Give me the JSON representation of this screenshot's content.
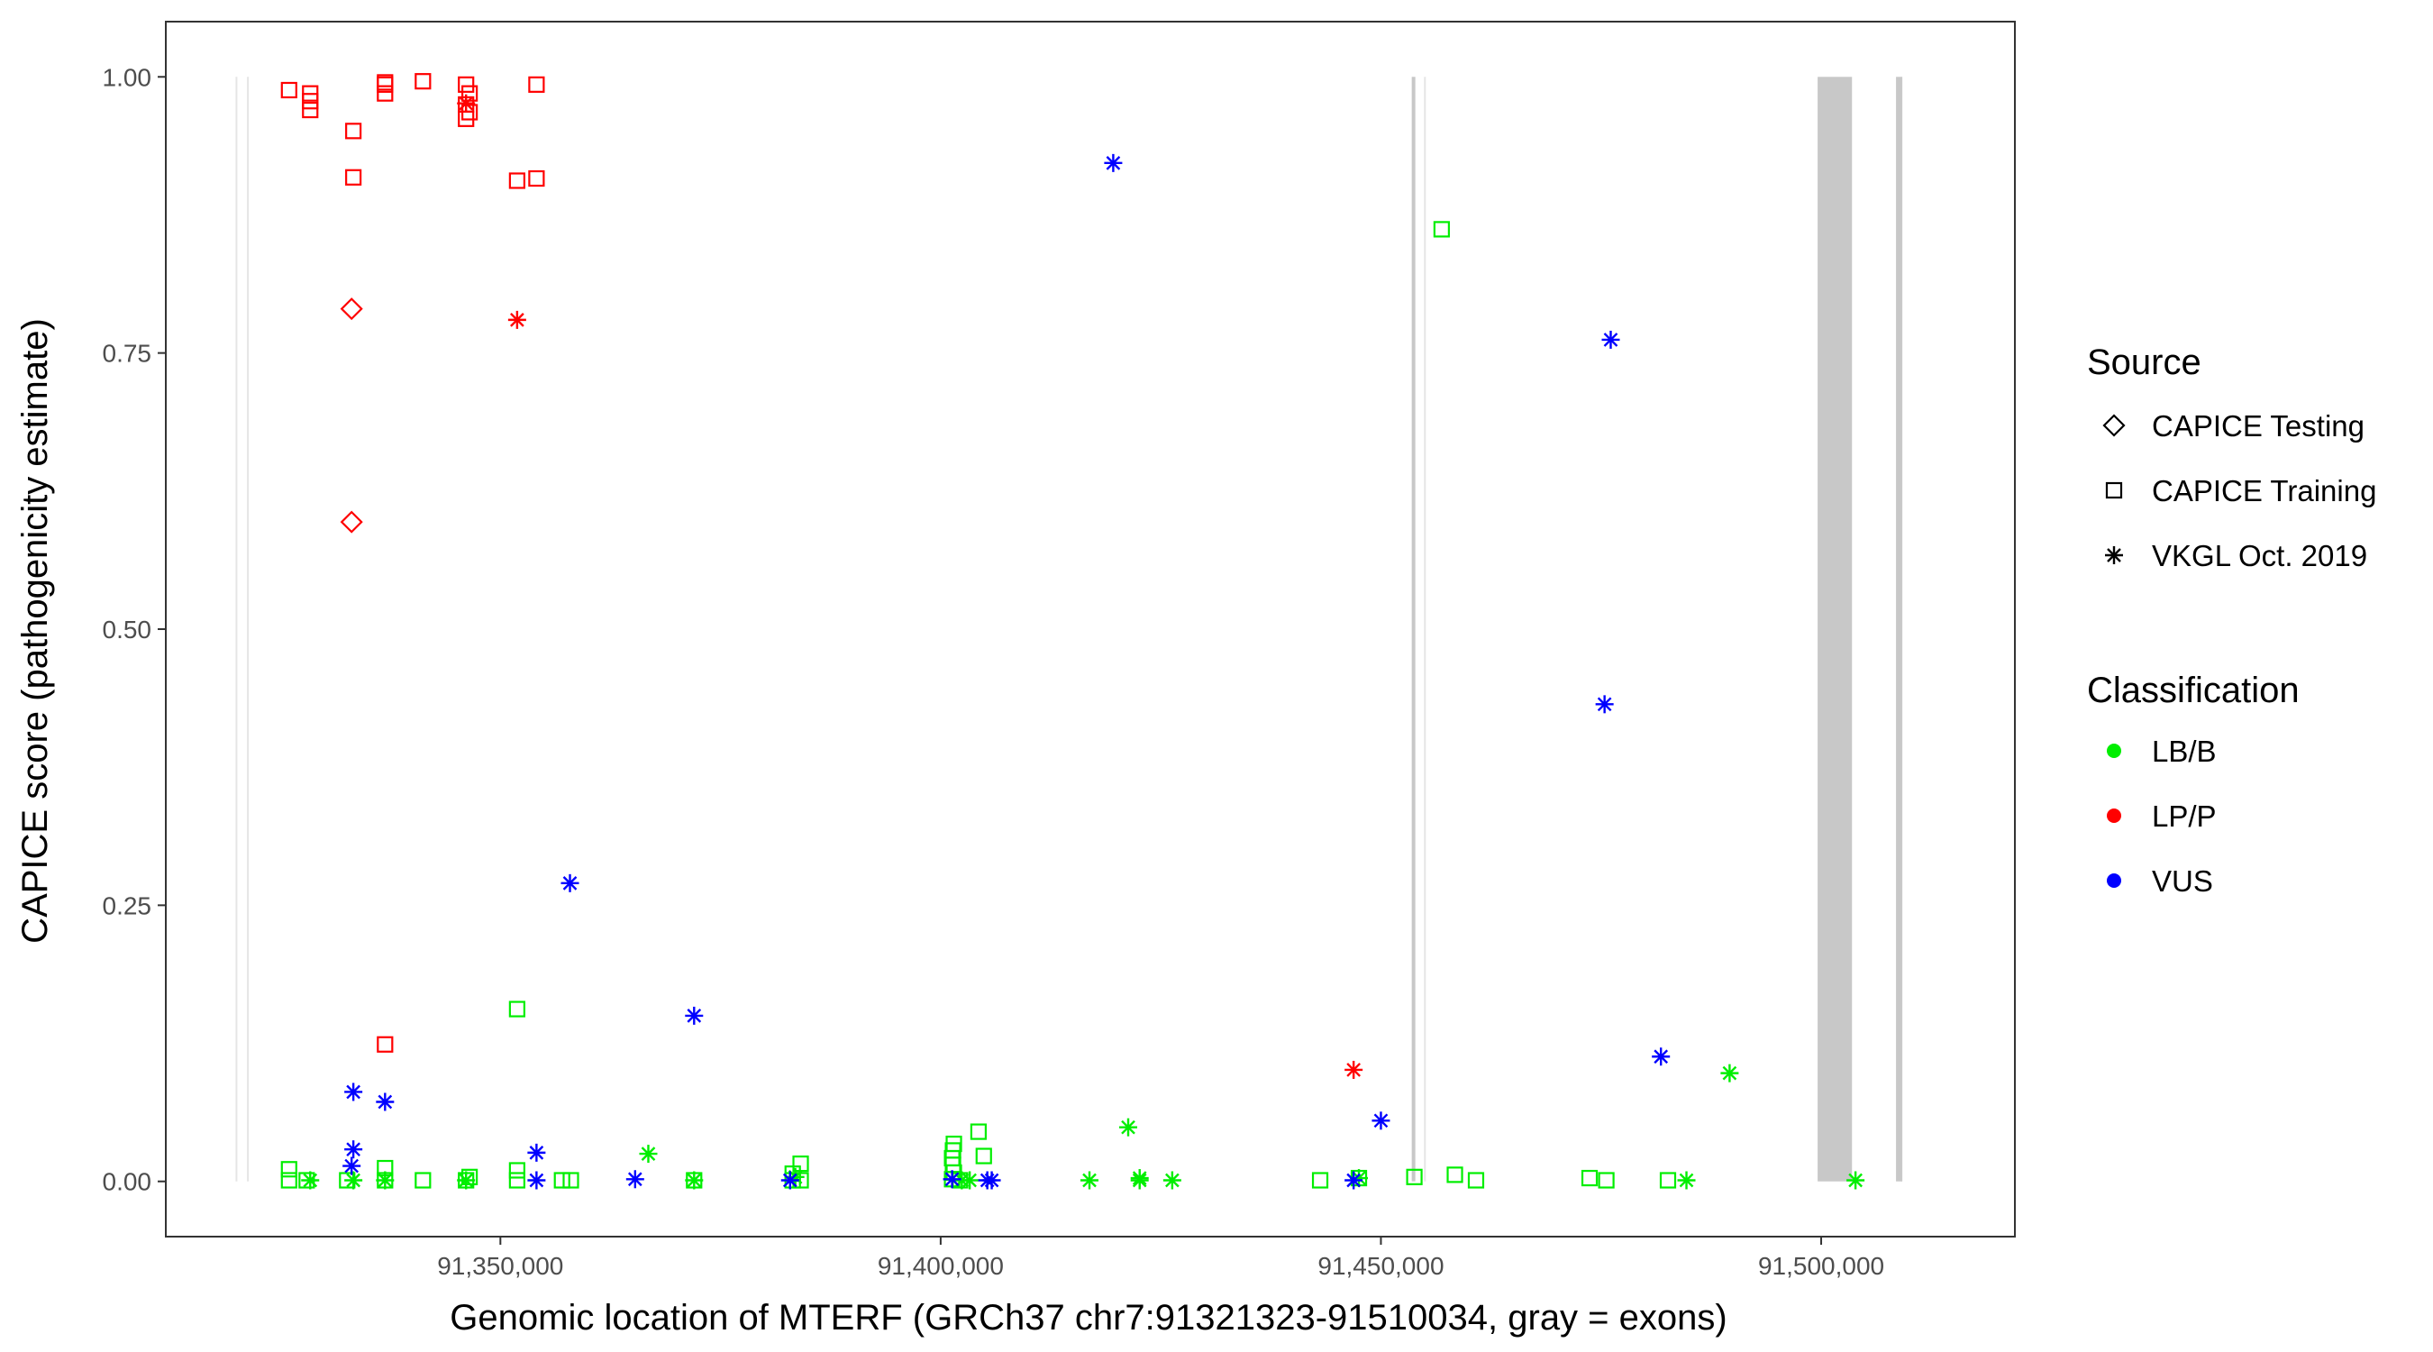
{
  "chart_data": {
    "type": "scatter",
    "xlabel": "Genomic location of MTERF (GRCh37 chr7:91321323-91510034, gray = exons)",
    "ylabel": "CAPICE score (pathogenicity estimate)",
    "xlim": [
      91312000,
      91522000
    ],
    "ylim": [
      -0.05,
      1.05
    ],
    "x_ticks": [
      91350000,
      91400000,
      91450000,
      91500000
    ],
    "x_tick_labels": [
      "91,350,000",
      "91,400,000",
      "91,450,000",
      "91,500,000"
    ],
    "y_ticks": [
      0,
      0.25,
      0.5,
      0.75,
      1.0
    ],
    "y_tick_labels": [
      "0.00",
      "0.25",
      "0.50",
      "0.75",
      "1.00"
    ],
    "grid": false,
    "gene_boundaries": [
      91321323,
      91510034
    ],
    "exons": [
      [
        91499600,
        91503500
      ],
      [
        91508500,
        91509200
      ],
      [
        91453500,
        91453700
      ]
    ],
    "legends": [
      {
        "title": "Source",
        "entries": [
          {
            "label": "CAPICE Testing",
            "shape": "diamond"
          },
          {
            "label": "CAPICE Training",
            "shape": "square"
          },
          {
            "label": "VKGL Oct. 2019",
            "shape": "asterisk"
          }
        ]
      },
      {
        "title": "Classification",
        "entries": [
          {
            "label": "LB/B",
            "color": "#00ee00"
          },
          {
            "label": "LP/P",
            "color": "#ff0000"
          },
          {
            "label": "VUS",
            "color": "#0000ff"
          }
        ]
      }
    ],
    "colors": {
      "LB/B": "#00ee00",
      "LP/P": "#ff0000",
      "VUS": "#0000ff",
      "exon": "#c8c8c8",
      "boundary": "#e5e5e5"
    },
    "points": [
      {
        "x": 91326000,
        "y": 0.988,
        "source": "CAPICE Training",
        "class": "LP/P"
      },
      {
        "x": 91328400,
        "y": 0.985,
        "source": "CAPICE Training",
        "class": "LP/P"
      },
      {
        "x": 91328400,
        "y": 0.978,
        "source": "CAPICE Training",
        "class": "LP/P"
      },
      {
        "x": 91328400,
        "y": 0.97,
        "source": "CAPICE Training",
        "class": "LP/P"
      },
      {
        "x": 91333300,
        "y": 0.951,
        "source": "CAPICE Training",
        "class": "LP/P"
      },
      {
        "x": 91333300,
        "y": 0.909,
        "source": "CAPICE Training",
        "class": "LP/P"
      },
      {
        "x": 91336900,
        "y": 0.995,
        "source": "CAPICE Training",
        "class": "LP/P"
      },
      {
        "x": 91336900,
        "y": 0.993,
        "source": "CAPICE Training",
        "class": "LP/P"
      },
      {
        "x": 91336900,
        "y": 0.985,
        "source": "CAPICE Training",
        "class": "LP/P"
      },
      {
        "x": 91341200,
        "y": 0.996,
        "source": "CAPICE Training",
        "class": "LP/P"
      },
      {
        "x": 91346100,
        "y": 0.993,
        "source": "CAPICE Training",
        "class": "LP/P"
      },
      {
        "x": 91346500,
        "y": 0.985,
        "source": "CAPICE Training",
        "class": "LP/P"
      },
      {
        "x": 91346100,
        "y": 0.975,
        "source": "CAPICE Training",
        "class": "LP/P"
      },
      {
        "x": 91346500,
        "y": 0.968,
        "source": "CAPICE Training",
        "class": "LP/P"
      },
      {
        "x": 91346100,
        "y": 0.962,
        "source": "CAPICE Training",
        "class": "LP/P"
      },
      {
        "x": 91346100,
        "y": 0.976,
        "source": "VKGL Oct. 2019",
        "class": "LP/P"
      },
      {
        "x": 91354100,
        "y": 0.993,
        "source": "CAPICE Training",
        "class": "LP/P"
      },
      {
        "x": 91351900,
        "y": 0.906,
        "source": "CAPICE Training",
        "class": "LP/P"
      },
      {
        "x": 91354100,
        "y": 0.908,
        "source": "CAPICE Training",
        "class": "LP/P"
      },
      {
        "x": 91333100,
        "y": 0.79,
        "source": "CAPICE Testing",
        "class": "LP/P"
      },
      {
        "x": 91351900,
        "y": 0.78,
        "source": "VKGL Oct. 2019",
        "class": "LP/P"
      },
      {
        "x": 91333100,
        "y": 0.597,
        "source": "CAPICE Testing",
        "class": "LP/P"
      },
      {
        "x": 91336900,
        "y": 0.124,
        "source": "CAPICE Training",
        "class": "LP/P"
      },
      {
        "x": 91446900,
        "y": 0.101,
        "source": "VKGL Oct. 2019",
        "class": "LP/P"
      },
      {
        "x": 91351900,
        "y": 0.156,
        "source": "CAPICE Training",
        "class": "LB/B"
      },
      {
        "x": 91456900,
        "y": 0.862,
        "source": "CAPICE Training",
        "class": "LB/B"
      },
      {
        "x": 91326000,
        "y": 0.011,
        "source": "CAPICE Training",
        "class": "LB/B"
      },
      {
        "x": 91326000,
        "y": 0.001,
        "source": "CAPICE Training",
        "class": "LB/B"
      },
      {
        "x": 91328000,
        "y": 0.001,
        "source": "CAPICE Training",
        "class": "LB/B"
      },
      {
        "x": 91328400,
        "y": 0.001,
        "source": "VKGL Oct. 2019",
        "class": "LB/B"
      },
      {
        "x": 91332600,
        "y": 0.001,
        "source": "CAPICE Training",
        "class": "LB/B"
      },
      {
        "x": 91333300,
        "y": 0.001,
        "source": "VKGL Oct. 2019",
        "class": "LB/B"
      },
      {
        "x": 91336900,
        "y": 0.012,
        "source": "CAPICE Training",
        "class": "LB/B"
      },
      {
        "x": 91336900,
        "y": 0.001,
        "source": "CAPICE Training",
        "class": "LB/B"
      },
      {
        "x": 91336900,
        "y": 0.001,
        "source": "VKGL Oct. 2019",
        "class": "LB/B"
      },
      {
        "x": 91341200,
        "y": 0.001,
        "source": "CAPICE Training",
        "class": "LB/B"
      },
      {
        "x": 91346100,
        "y": 0.001,
        "source": "CAPICE Training",
        "class": "LB/B"
      },
      {
        "x": 91346500,
        "y": 0.004,
        "source": "CAPICE Training",
        "class": "LB/B"
      },
      {
        "x": 91346100,
        "y": 0.001,
        "source": "VKGL Oct. 2019",
        "class": "LB/B"
      },
      {
        "x": 91351900,
        "y": 0.01,
        "source": "CAPICE Training",
        "class": "LB/B"
      },
      {
        "x": 91351900,
        "y": 0.001,
        "source": "CAPICE Training",
        "class": "LB/B"
      },
      {
        "x": 91357000,
        "y": 0.001,
        "source": "CAPICE Training",
        "class": "LB/B"
      },
      {
        "x": 91358000,
        "y": 0.001,
        "source": "CAPICE Training",
        "class": "LB/B"
      },
      {
        "x": 91366800,
        "y": 0.025,
        "source": "VKGL Oct. 2019",
        "class": "LB/B"
      },
      {
        "x": 91372000,
        "y": 0.001,
        "source": "CAPICE Training",
        "class": "LB/B"
      },
      {
        "x": 91372000,
        "y": 0.001,
        "source": "VKGL Oct. 2019",
        "class": "LB/B"
      },
      {
        "x": 91383200,
        "y": 0.007,
        "source": "CAPICE Training",
        "class": "LB/B"
      },
      {
        "x": 91383200,
        "y": 0.001,
        "source": "CAPICE Training",
        "class": "LB/B"
      },
      {
        "x": 91384100,
        "y": 0.016,
        "source": "CAPICE Training",
        "class": "LB/B"
      },
      {
        "x": 91384100,
        "y": 0.001,
        "source": "CAPICE Training",
        "class": "LB/B"
      },
      {
        "x": 91383500,
        "y": 0.004,
        "source": "VKGL Oct. 2019",
        "class": "LB/B"
      },
      {
        "x": 91401500,
        "y": 0.034,
        "source": "CAPICE Training",
        "class": "LB/B"
      },
      {
        "x": 91401400,
        "y": 0.028,
        "source": "CAPICE Training",
        "class": "LB/B"
      },
      {
        "x": 91401300,
        "y": 0.021,
        "source": "CAPICE Training",
        "class": "LB/B"
      },
      {
        "x": 91401400,
        "y": 0.015,
        "source": "CAPICE Training",
        "class": "LB/B"
      },
      {
        "x": 91401500,
        "y": 0.008,
        "source": "CAPICE Training",
        "class": "LB/B"
      },
      {
        "x": 91401300,
        "y": 0.002,
        "source": "CAPICE Training",
        "class": "LB/B"
      },
      {
        "x": 91404300,
        "y": 0.045,
        "source": "CAPICE Training",
        "class": "LB/B"
      },
      {
        "x": 91404900,
        "y": 0.023,
        "source": "CAPICE Training",
        "class": "LB/B"
      },
      {
        "x": 91402200,
        "y": 0.001,
        "source": "CAPICE Training",
        "class": "LB/B"
      },
      {
        "x": 91403300,
        "y": 0.001,
        "source": "VKGL Oct. 2019",
        "class": "LB/B"
      },
      {
        "x": 91402400,
        "y": 0.001,
        "source": "VKGL Oct. 2019",
        "class": "LB/B"
      },
      {
        "x": 91416900,
        "y": 0.001,
        "source": "VKGL Oct. 2019",
        "class": "LB/B"
      },
      {
        "x": 91421300,
        "y": 0.049,
        "source": "VKGL Oct. 2019",
        "class": "LB/B"
      },
      {
        "x": 91422600,
        "y": 0.003,
        "source": "VKGL Oct. 2019",
        "class": "LB/B"
      },
      {
        "x": 91422600,
        "y": 0.001,
        "source": "VKGL Oct. 2019",
        "class": "LB/B"
      },
      {
        "x": 91426300,
        "y": 0.001,
        "source": "VKGL Oct. 2019",
        "class": "LB/B"
      },
      {
        "x": 91443100,
        "y": 0.001,
        "source": "CAPICE Training",
        "class": "LB/B"
      },
      {
        "x": 91447500,
        "y": 0.003,
        "source": "CAPICE Training",
        "class": "LB/B"
      },
      {
        "x": 91447500,
        "y": 0.003,
        "source": "VKGL Oct. 2019",
        "class": "LB/B"
      },
      {
        "x": 91453800,
        "y": 0.004,
        "source": "CAPICE Training",
        "class": "LB/B"
      },
      {
        "x": 91458400,
        "y": 0.006,
        "source": "CAPICE Training",
        "class": "LB/B"
      },
      {
        "x": 91460800,
        "y": 0.001,
        "source": "CAPICE Training",
        "class": "LB/B"
      },
      {
        "x": 91473700,
        "y": 0.003,
        "source": "CAPICE Training",
        "class": "LB/B"
      },
      {
        "x": 91475600,
        "y": 0.001,
        "source": "CAPICE Training",
        "class": "LB/B"
      },
      {
        "x": 91482600,
        "y": 0.001,
        "source": "CAPICE Training",
        "class": "LB/B"
      },
      {
        "x": 91484700,
        "y": 0.001,
        "source": "VKGL Oct. 2019",
        "class": "LB/B"
      },
      {
        "x": 91489600,
        "y": 0.098,
        "source": "VKGL Oct. 2019",
        "class": "LB/B"
      },
      {
        "x": 91503900,
        "y": 0.001,
        "source": "VKGL Oct. 2019",
        "class": "LB/B"
      },
      {
        "x": 91419600,
        "y": 0.922,
        "source": "VKGL Oct. 2019",
        "class": "VUS"
      },
      {
        "x": 91476100,
        "y": 0.762,
        "source": "VKGL Oct. 2019",
        "class": "VUS"
      },
      {
        "x": 91475400,
        "y": 0.432,
        "source": "VKGL Oct. 2019",
        "class": "VUS"
      },
      {
        "x": 91357900,
        "y": 0.27,
        "source": "VKGL Oct. 2019",
        "class": "VUS"
      },
      {
        "x": 91372000,
        "y": 0.15,
        "source": "VKGL Oct. 2019",
        "class": "VUS"
      },
      {
        "x": 91481800,
        "y": 0.113,
        "source": "VKGL Oct. 2019",
        "class": "VUS"
      },
      {
        "x": 91333300,
        "y": 0.081,
        "source": "VKGL Oct. 2019",
        "class": "VUS"
      },
      {
        "x": 91336900,
        "y": 0.072,
        "source": "VKGL Oct. 2019",
        "class": "VUS"
      },
      {
        "x": 91450000,
        "y": 0.055,
        "source": "VKGL Oct. 2019",
        "class": "VUS"
      },
      {
        "x": 91333300,
        "y": 0.029,
        "source": "VKGL Oct. 2019",
        "class": "VUS"
      },
      {
        "x": 91333100,
        "y": 0.014,
        "source": "VKGL Oct. 2019",
        "class": "VUS"
      },
      {
        "x": 91354100,
        "y": 0.026,
        "source": "VKGL Oct. 2019",
        "class": "VUS"
      },
      {
        "x": 91354100,
        "y": 0.001,
        "source": "VKGL Oct. 2019",
        "class": "VUS"
      },
      {
        "x": 91365300,
        "y": 0.002,
        "source": "VKGL Oct. 2019",
        "class": "VUS"
      },
      {
        "x": 91382900,
        "y": 0.001,
        "source": "VKGL Oct. 2019",
        "class": "VUS"
      },
      {
        "x": 91401300,
        "y": 0.002,
        "source": "VKGL Oct. 2019",
        "class": "VUS"
      },
      {
        "x": 91405300,
        "y": 0.001,
        "source": "VKGL Oct. 2019",
        "class": "VUS"
      },
      {
        "x": 91405800,
        "y": 0.001,
        "source": "VKGL Oct. 2019",
        "class": "VUS"
      },
      {
        "x": 91446900,
        "y": 0.001,
        "source": "VKGL Oct. 2019",
        "class": "VUS"
      }
    ]
  }
}
